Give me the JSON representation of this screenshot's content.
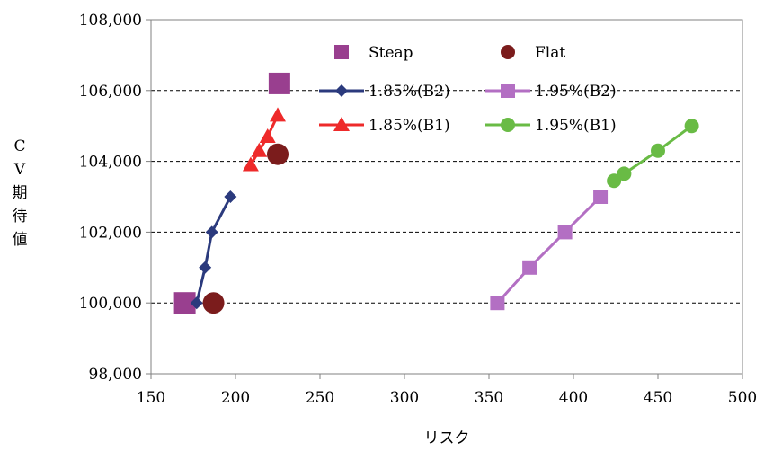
{
  "chart_data": {
    "type": "scatter",
    "xlabel": "リスク",
    "ylabel": "CV期待値",
    "xlim": [
      150,
      500
    ],
    "ylim": [
      98000,
      108000
    ],
    "xticks": [
      150,
      200,
      250,
      300,
      350,
      400,
      450,
      500
    ],
    "yticks": [
      98000,
      100000,
      102000,
      104000,
      106000,
      108000
    ],
    "xtick_labels": [
      "150",
      "200",
      "250",
      "300",
      "350",
      "400",
      "450",
      "500"
    ],
    "ytick_labels": [
      "98,000",
      "100,000",
      "102,000",
      "104,000",
      "106,000",
      "108,000"
    ],
    "grid": "horizontal dashed",
    "legend": "top-center",
    "series": [
      {
        "name": "Steap",
        "marker": "square-large",
        "line": false,
        "color": "#993f8f",
        "points": [
          [
            170,
            100000
          ],
          [
            226,
            106200
          ]
        ]
      },
      {
        "name": "Flat",
        "marker": "circle-large",
        "line": false,
        "color": "#7b1c1c",
        "points": [
          [
            187,
            100000
          ],
          [
            225,
            104200
          ]
        ]
      },
      {
        "name": "1.85%(B2)",
        "marker": "diamond",
        "line": true,
        "color": "#2b3a7d",
        "points": [
          [
            177,
            100000
          ],
          [
            182,
            101000
          ],
          [
            186,
            102000
          ],
          [
            197,
            103000
          ]
        ]
      },
      {
        "name": "1.95%(B2)",
        "marker": "square",
        "line": true,
        "color": "#b36fc3",
        "points": [
          [
            355,
            100000
          ],
          [
            374,
            101000
          ],
          [
            395,
            102000
          ],
          [
            416,
            103000
          ]
        ]
      },
      {
        "name": "1.85%(B1)",
        "marker": "triangle",
        "line": true,
        "color": "#ee2a2a",
        "points": [
          [
            209,
            103900
          ],
          [
            214,
            104300
          ],
          [
            219,
            104700
          ],
          [
            225,
            105300
          ]
        ]
      },
      {
        "name": "1.95%(B1)",
        "marker": "circle",
        "line": true,
        "color": "#69bb45",
        "points": [
          [
            424,
            103450
          ],
          [
            430,
            103650
          ],
          [
            450,
            104300
          ],
          [
            470,
            105000
          ]
        ]
      }
    ]
  }
}
